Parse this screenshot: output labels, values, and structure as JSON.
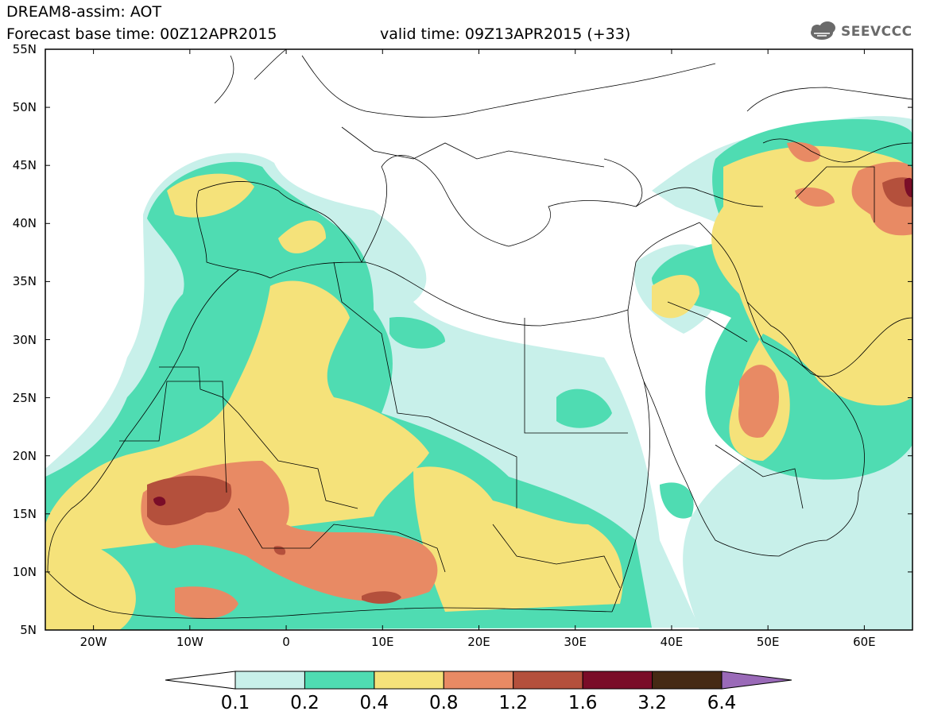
{
  "header": {
    "title": "DREAM8-assim: AOT",
    "base_time": "Forecast base time: 00Z12APR2015",
    "valid_time": "valid time: 09Z13APR2015 (+33)",
    "logo_text": "SEEVCCC"
  },
  "map": {
    "variable": "AOT",
    "lon_range": [
      -25,
      65
    ],
    "lat_range": [
      5,
      55
    ],
    "lat_labels": [
      "55N",
      "50N",
      "45N",
      "40N",
      "35N",
      "30N",
      "25N",
      "20N",
      "15N",
      "10N",
      "5N"
    ],
    "lat_values": [
      55,
      50,
      45,
      40,
      35,
      30,
      25,
      20,
      15,
      10,
      5
    ],
    "lon_labels": [
      "20W",
      "10W",
      "0",
      "10E",
      "20E",
      "30E",
      "40E",
      "50E",
      "60E"
    ],
    "lon_values": [
      -20,
      -10,
      0,
      10,
      20,
      30,
      40,
      50,
      60
    ]
  },
  "colorbar": {
    "levels": [
      "0.1",
      "0.2",
      "0.4",
      "0.8",
      "1.2",
      "1.6",
      "3.2",
      "6.4"
    ],
    "colors": [
      "#ffffff",
      "#c8f0ea",
      "#4fdcb2",
      "#f5e27a",
      "#e88a64",
      "#b4503c",
      "#7a0d28",
      "#452a14",
      "#9a6ab8"
    ]
  }
}
